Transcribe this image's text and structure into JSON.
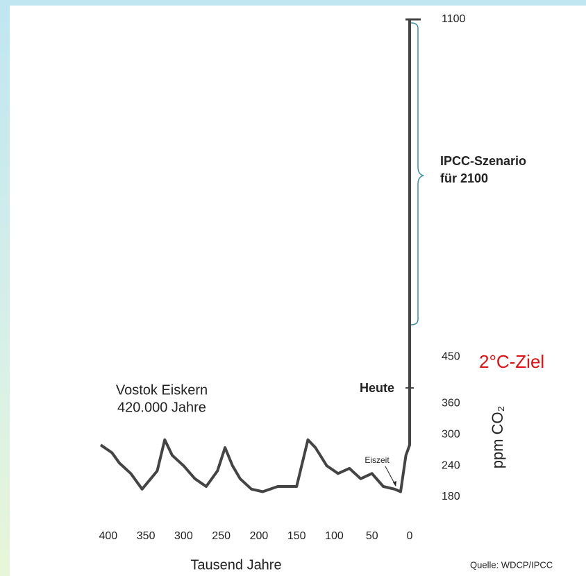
{
  "chart_data": {
    "type": "line",
    "x_label": "Tausend Jahre",
    "y_label": "ppm CO₂",
    "annotations": {
      "core_title": "Vostok Eiskern",
      "core_span": "420.000 Jahre",
      "today": "Heute",
      "ice_age": "Eiszeit",
      "scenario_1": "IPCC-Szenario",
      "scenario_2": "für 2100",
      "target": "2°C-Ziel",
      "source": "Quelle: WDCP/IPCC"
    },
    "xlim": [
      410,
      0
    ],
    "xticks": [
      400,
      350,
      300,
      250,
      200,
      150,
      100,
      50,
      0
    ],
    "ylim": [
      180,
      1100
    ],
    "yticks": [
      180,
      240,
      300,
      360,
      450,
      1100
    ],
    "color": "#444444",
    "x": [
      410,
      395,
      385,
      370,
      355,
      335,
      325,
      315,
      300,
      285,
      270,
      255,
      245,
      235,
      225,
      210,
      195,
      175,
      150,
      135,
      125,
      110,
      95,
      80,
      65,
      50,
      35,
      20,
      12,
      5,
      0,
      0,
      0
    ],
    "values": [
      280,
      265,
      245,
      225,
      195,
      230,
      290,
      260,
      240,
      215,
      200,
      230,
      275,
      240,
      215,
      195,
      190,
      200,
      200,
      290,
      275,
      240,
      225,
      235,
      215,
      225,
      200,
      195,
      190,
      260,
      280,
      390,
      1100
    ]
  }
}
